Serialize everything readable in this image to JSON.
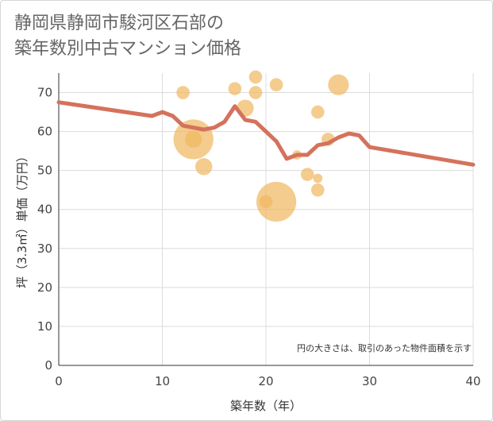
{
  "title": {
    "line1": "静岡県静岡市駿河区石部の",
    "line2": "築年数別中古マンション価格"
  },
  "chart_data": {
    "type": "scatter",
    "title": "静岡県静岡市駿河区石部の築年数別中古マンション価格",
    "xlabel": "築年数（年）",
    "ylabel": "坪（3.3㎡）単価（万円）",
    "xlim": [
      0,
      40
    ],
    "ylim": [
      0,
      75
    ],
    "xticks": [
      0,
      10,
      20,
      30,
      40
    ],
    "yticks": [
      0,
      10,
      20,
      30,
      40,
      50,
      60,
      70
    ],
    "grid": true,
    "note": "円の大きさは、取引のあった物件面積を示す",
    "colors": {
      "bubble": "#f0b962",
      "line": "#d4725c",
      "grid": "#dcdcdc"
    },
    "bubbles": [
      {
        "x": 12,
        "y": 70,
        "size": 2
      },
      {
        "x": 13,
        "y": 58,
        "size": 9
      },
      {
        "x": 13,
        "y": 58,
        "size": 3
      },
      {
        "x": 14,
        "y": 51,
        "size": 3
      },
      {
        "x": 17,
        "y": 71,
        "size": 2
      },
      {
        "x": 18,
        "y": 66,
        "size": 3
      },
      {
        "x": 19,
        "y": 74,
        "size": 2
      },
      {
        "x": 19,
        "y": 70,
        "size": 2
      },
      {
        "x": 20,
        "y": 42,
        "size": 2
      },
      {
        "x": 21,
        "y": 42,
        "size": 9
      },
      {
        "x": 21,
        "y": 72,
        "size": 2
      },
      {
        "x": 23,
        "y": 54,
        "size": 1
      },
      {
        "x": 24,
        "y": 49,
        "size": 2
      },
      {
        "x": 25,
        "y": 65,
        "size": 2
      },
      {
        "x": 25,
        "y": 48,
        "size": 1
      },
      {
        "x": 25,
        "y": 45,
        "size": 2
      },
      {
        "x": 26,
        "y": 58,
        "size": 2
      },
      {
        "x": 27,
        "y": 72,
        "size": 4
      }
    ],
    "trend": {
      "x": [
        0,
        9,
        10,
        11,
        12,
        13,
        14,
        15,
        16,
        17,
        18,
        19,
        20,
        21,
        22,
        23,
        24,
        25,
        26,
        27,
        28,
        29,
        30,
        40
      ],
      "y": [
        67.5,
        64,
        65,
        64,
        61.5,
        61,
        60.5,
        61,
        62.5,
        66.5,
        63,
        62.5,
        60,
        57.5,
        53,
        54,
        54,
        56.5,
        57,
        58.5,
        59.5,
        59,
        56,
        51.5
      ]
    }
  }
}
